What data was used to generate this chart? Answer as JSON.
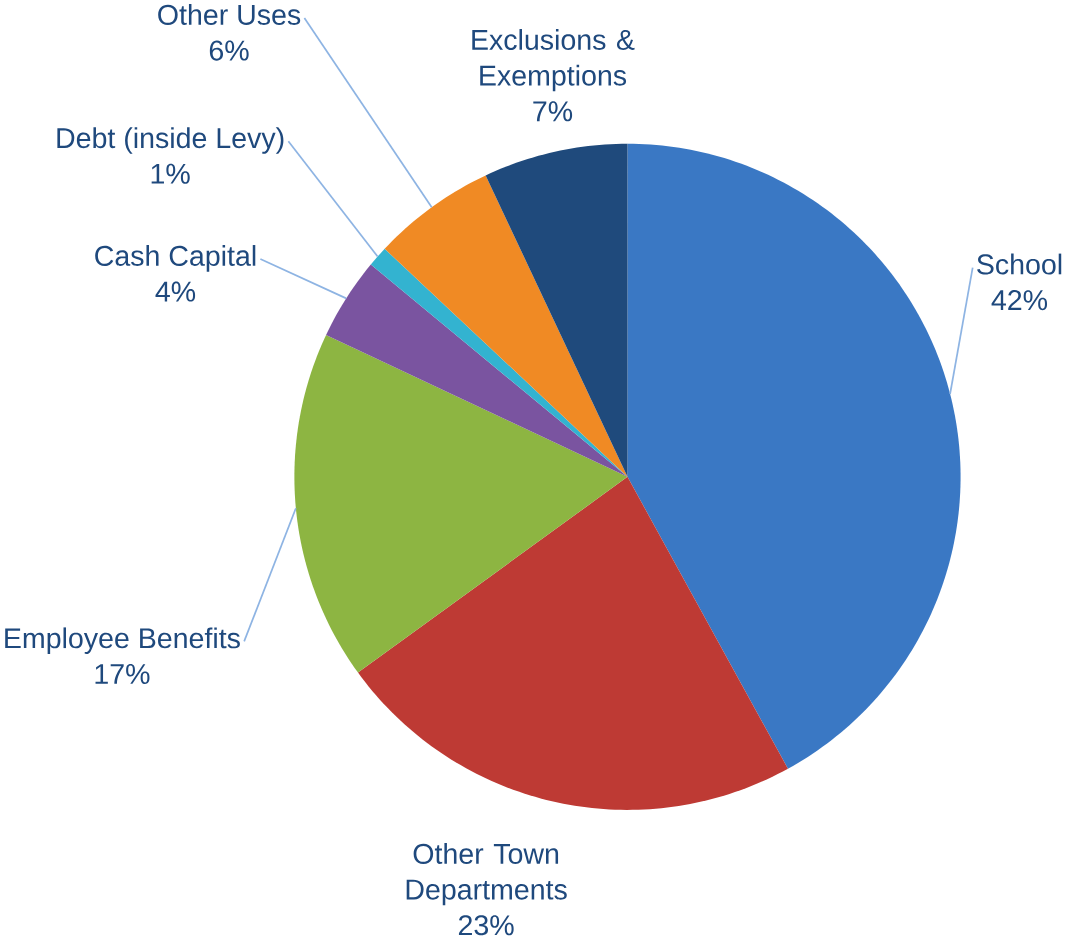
{
  "chart_data": {
    "type": "pie",
    "categories": [
      "School",
      "Other Town Departments",
      "Employee Benefits",
      "Cash Capital",
      "Debt (inside Levy)",
      "Other Uses",
      "Exclusions & Exemptions"
    ],
    "values": [
      42,
      23,
      17,
      4,
      1,
      6,
      7
    ],
    "value_labels": [
      "42%",
      "23%",
      "17%",
      "4%",
      "1%",
      "6%",
      "7%"
    ],
    "colors": [
      "#3a78c4",
      "#be3a34",
      "#8db542",
      "#7a54a0",
      "#33b3d0",
      "#f08a24",
      "#1f4a7c"
    ]
  }
}
